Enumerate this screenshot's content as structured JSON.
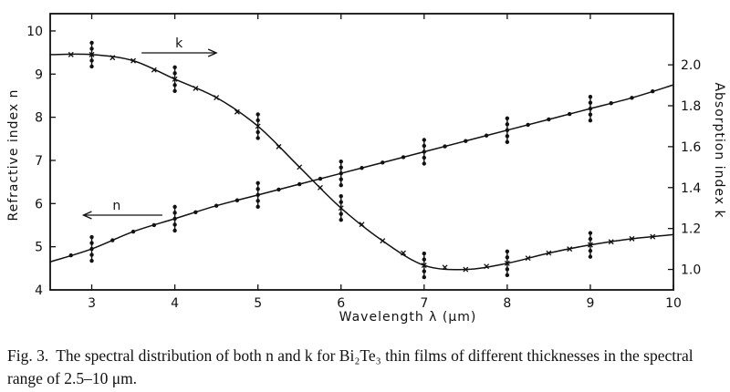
{
  "chart_data": {
    "type": "line",
    "x": [
      2.5,
      3.0,
      3.5,
      4.0,
      4.5,
      5.0,
      5.5,
      6.0,
      6.5,
      7.0,
      7.5,
      8.0,
      8.5,
      9.0,
      9.5,
      10.0
    ],
    "xlabel": "Wavelength λ (μm)",
    "ylabel_left": "Refractive index n",
    "ylabel_right": "Absorption index k",
    "xlim": [
      2.5,
      10
    ],
    "ylim_left": [
      4,
      10.4
    ],
    "ylim_right": [
      0.9,
      2.25
    ],
    "x_ticks": [
      "3",
      "4",
      "5",
      "6",
      "7",
      "8",
      "9",
      "10"
    ],
    "y_left_ticks": [
      "4",
      "5",
      "6",
      "7",
      "8",
      "9",
      "10"
    ],
    "y_right_ticks": [
      "1.0",
      "1.2",
      "1.4",
      "1.6",
      "1.8",
      "2.0"
    ],
    "series": [
      {
        "name": "n",
        "axis": "left",
        "marker": "dot",
        "values": [
          4.65,
          4.95,
          5.35,
          5.65,
          5.95,
          6.2,
          6.45,
          6.7,
          6.95,
          7.2,
          7.45,
          7.7,
          7.95,
          8.2,
          8.45,
          8.75
        ]
      },
      {
        "name": "k",
        "axis": "right",
        "marker": "x",
        "values": [
          2.05,
          2.05,
          2.02,
          1.93,
          1.84,
          1.7,
          1.5,
          1.3,
          1.14,
          1.02,
          1.0,
          1.03,
          1.08,
          1.12,
          1.15,
          1.17
        ]
      }
    ],
    "error_bars": [
      {
        "series": "n",
        "x": [
          3,
          4,
          5,
          6,
          7,
          8,
          9
        ]
      },
      {
        "series": "k",
        "x": [
          3,
          4,
          5,
          6,
          7,
          8,
          9
        ]
      }
    ],
    "annotations": [
      {
        "label": "k",
        "series": "k",
        "direction": "right"
      },
      {
        "label": "n",
        "series": "n",
        "direction": "left"
      }
    ],
    "grid": false
  },
  "caption": {
    "label": "Fig. 3.",
    "text": "The spectral distribution of both n and k for Bi₂Te₃ thin films of different thicknesses in the spectral range of 2.5–10 μm."
  }
}
